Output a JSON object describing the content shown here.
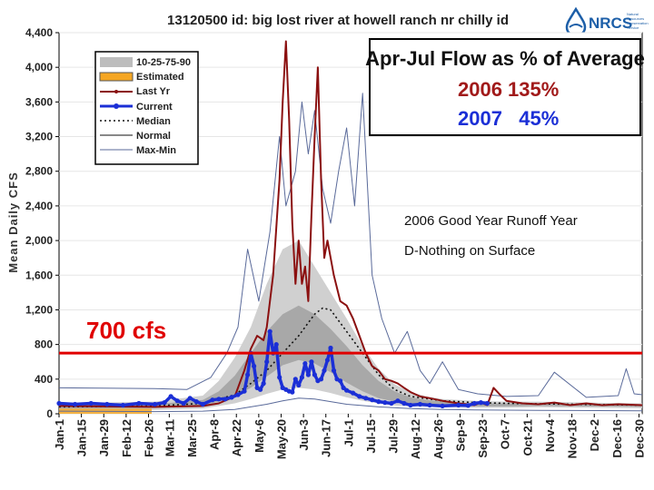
{
  "chart_data": {
    "type": "line",
    "title": "13120500 id: big lost river at howell ranch nr chilly id",
    "ylabel": "Mean Daily CFS",
    "xlabel": "",
    "ylim": [
      0,
      4400
    ],
    "yticks": [
      0,
      400,
      800,
      1200,
      1600,
      2000,
      2400,
      2800,
      3200,
      3600,
      4000,
      4400
    ],
    "ytick_labels": [
      "0",
      "400",
      "800",
      "1,200",
      "1,600",
      "2,000",
      "2,400",
      "2,800",
      "3,200",
      "3,600",
      "4,000",
      "4,400"
    ],
    "xlim": [
      0,
      365
    ],
    "x_ticks": [
      {
        "label": "Jan-1",
        "day": 0
      },
      {
        "label": "Jan-15",
        "day": 14
      },
      {
        "label": "Jan-29",
        "day": 28
      },
      {
        "label": "Feb-12",
        "day": 42
      },
      {
        "label": "Feb-26",
        "day": 56
      },
      {
        "label": "Mar-11",
        "day": 69
      },
      {
        "label": "Mar-25",
        "day": 83
      },
      {
        "label": "Apr-8",
        "day": 97
      },
      {
        "label": "Apr-22",
        "day": 111
      },
      {
        "label": "May-6",
        "day": 125
      },
      {
        "label": "May-20",
        "day": 139
      },
      {
        "label": "Jun-3",
        "day": 153
      },
      {
        "label": "Jun-17",
        "day": 167
      },
      {
        "label": "Jul-1",
        "day": 181
      },
      {
        "label": "Jul-15",
        "day": 195
      },
      {
        "label": "Jul-29",
        "day": 209
      },
      {
        "label": "Aug-12",
        "day": 223
      },
      {
        "label": "Aug-26",
        "day": 237
      },
      {
        "label": "Sep-9",
        "day": 251
      },
      {
        "label": "Sep-23",
        "day": 265
      },
      {
        "label": "Oct-7",
        "day": 279
      },
      {
        "label": "Oct-21",
        "day": 293
      },
      {
        "label": "Nov-4",
        "day": 307
      },
      {
        "label": "Nov-18",
        "day": 321
      },
      {
        "label": "Dec-2",
        "day": 335
      },
      {
        "label": "Dec-16",
        "day": 349
      },
      {
        "label": "Dec-30",
        "day": 363
      }
    ],
    "reference_line": {
      "value": 700,
      "label": "700 cfs",
      "color": "#e00000"
    },
    "legend": {
      "position": "top-left",
      "entries": [
        "10-25-75-90",
        "Estimated",
        "Last Yr",
        "Current",
        "Median",
        "Normal",
        "Max-Min"
      ]
    },
    "bands": {
      "x": [
        0,
        60,
        90,
        100,
        110,
        120,
        130,
        140,
        150,
        160,
        170,
        180,
        190,
        200,
        210,
        220,
        230,
        240,
        260,
        280,
        300,
        330,
        365
      ],
      "p10": [
        40,
        45,
        60,
        90,
        120,
        170,
        230,
        280,
        300,
        280,
        240,
        190,
        150,
        120,
        95,
        85,
        80,
        75,
        70,
        70,
        75,
        70,
        65
      ],
      "p25": [
        60,
        65,
        90,
        140,
        200,
        300,
        430,
        560,
        620,
        580,
        480,
        360,
        260,
        180,
        140,
        115,
        100,
        95,
        85,
        85,
        90,
        85,
        80
      ],
      "p75": [
        100,
        110,
        160,
        260,
        440,
        700,
        950,
        1150,
        1250,
        1150,
        980,
        780,
        560,
        380,
        260,
        190,
        160,
        140,
        120,
        120,
        120,
        110,
        100
      ],
      "p90": [
        120,
        140,
        210,
        380,
        650,
        1000,
        1500,
        1900,
        2000,
        1700,
        1400,
        1100,
        780,
        520,
        340,
        250,
        200,
        170,
        150,
        140,
        140,
        130,
        120
      ],
      "max": [
        140,
        170,
        280,
        520,
        1100,
        1600,
        2400,
        3000,
        3300,
        2900,
        2300,
        1800,
        1200,
        800,
        560,
        380,
        290,
        240,
        190,
        170,
        170,
        160,
        150
      ]
    },
    "series": [
      {
        "name": "Max-Min",
        "color": "#5a6a9a",
        "x": [
          0,
          60,
          80,
          95,
          105,
          112,
          118,
          125,
          132,
          138,
          142,
          148,
          152,
          156,
          160,
          165,
          170,
          175,
          180,
          185,
          190,
          196,
          202,
          210,
          218,
          226,
          232,
          240,
          250,
          262,
          280,
          300,
          310,
          330,
          350,
          355,
          360,
          365
        ],
        "values": [
          300,
          290,
          280,
          420,
          700,
          1000,
          1900,
          1300,
          2100,
          3200,
          2400,
          2800,
          3600,
          3000,
          3500,
          2600,
          2200,
          2800,
          3300,
          2400,
          3700,
          1600,
          1100,
          700,
          950,
          500,
          350,
          600,
          280,
          230,
          200,
          210,
          480,
          190,
          210,
          520,
          230,
          220
        ]
      },
      {
        "name": "Max-Min (lower)",
        "color": "#5a6a9a",
        "x": [
          0,
          60,
          90,
          110,
          120,
          130,
          140,
          150,
          160,
          170,
          180,
          200,
          220,
          240,
          260,
          300,
          365
        ],
        "values": [
          30,
          25,
          30,
          50,
          80,
          110,
          150,
          180,
          170,
          140,
          110,
          80,
          60,
          50,
          45,
          40,
          35
        ]
      },
      {
        "name": "Median",
        "color": "#111111",
        "x": [
          0,
          60,
          90,
          110,
          120,
          130,
          140,
          150,
          160,
          165,
          170,
          180,
          190,
          200,
          210,
          220,
          240,
          260,
          280,
          300,
          365
        ],
        "values": [
          80,
          90,
          120,
          220,
          350,
          500,
          700,
          900,
          1150,
          1220,
          1200,
          950,
          700,
          450,
          280,
          200,
          150,
          130,
          120,
          115,
          100
        ]
      },
      {
        "name": "Last Yr",
        "color": "#8b1010",
        "x": [
          0,
          60,
          90,
          100,
          110,
          116,
          120,
          124,
          128,
          130,
          134,
          138,
          140,
          142,
          144,
          146,
          148,
          150,
          152,
          154,
          156,
          158,
          160,
          162,
          164,
          166,
          168,
          172,
          176,
          180,
          184,
          188,
          192,
          196,
          200,
          204,
          208,
          212,
          216,
          220,
          226,
          232,
          240,
          250,
          260,
          264,
          268,
          272,
          276,
          280,
          290,
          300,
          310,
          320,
          330,
          340,
          350,
          365
        ],
        "values": [
          90,
          80,
          90,
          120,
          200,
          500,
          750,
          900,
          850,
          1000,
          1600,
          2700,
          3600,
          4300,
          3400,
          2200,
          1500,
          2000,
          1500,
          1700,
          1300,
          2300,
          3200,
          4000,
          2700,
          1800,
          2000,
          1600,
          1300,
          1250,
          1100,
          900,
          700,
          550,
          500,
          400,
          380,
          350,
          300,
          250,
          200,
          180,
          150,
          120,
          100,
          130,
          100,
          300,
          220,
          150,
          120,
          110,
          130,
          100,
          120,
          100,
          110,
          100
        ]
      },
      {
        "name": "Current",
        "color": "#1b2fd6",
        "marker": true,
        "x": [
          0,
          10,
          20,
          30,
          40,
          50,
          60,
          66,
          70,
          74,
          78,
          82,
          86,
          90,
          96,
          100,
          104,
          108,
          112,
          116,
          118,
          120,
          122,
          124,
          126,
          128,
          130,
          132,
          134,
          136,
          138,
          140,
          142,
          144,
          146,
          148,
          150,
          152,
          154,
          156,
          158,
          160,
          162,
          164,
          166,
          168,
          170,
          172,
          174,
          176,
          178,
          180,
          184,
          188,
          192,
          196,
          200,
          204,
          208,
          212,
          216,
          220,
          226,
          232,
          240,
          250,
          256,
          260,
          264,
          268
        ],
        "values": [
          120,
          110,
          120,
          110,
          100,
          120,
          110,
          130,
          200,
          150,
          120,
          180,
          140,
          110,
          160,
          170,
          170,
          190,
          220,
          260,
          450,
          700,
          550,
          300,
          280,
          350,
          600,
          950,
          700,
          800,
          420,
          300,
          280,
          260,
          250,
          400,
          330,
          420,
          580,
          450,
          600,
          450,
          380,
          400,
          500,
          620,
          760,
          500,
          400,
          380,
          300,
          270,
          240,
          200,
          180,
          160,
          140,
          130,
          120,
          150,
          120,
          100,
          110,
          100,
          90,
          100,
          95,
          120,
          130,
          120
        ]
      }
    ]
  },
  "annotation": {
    "title": "Apr-Jul Flow as % of Average",
    "line_2006": "2006 135%",
    "line_2007": "2007   45%"
  },
  "notes": {
    "line1": "2006 Good Year Runoff Year",
    "line2": "D-Nothing on Surface"
  },
  "logo": {
    "text": "NRCS",
    "subtitle": [
      "Natural",
      "Resources",
      "Conservation",
      "Service"
    ]
  },
  "colors": {
    "band_outer": "#d0d0d0",
    "band_inner": "#a8a8a8",
    "estimated": "#f5a623",
    "reference": "#e00000",
    "current": "#1b2fd6",
    "last_year": "#8b1010"
  }
}
